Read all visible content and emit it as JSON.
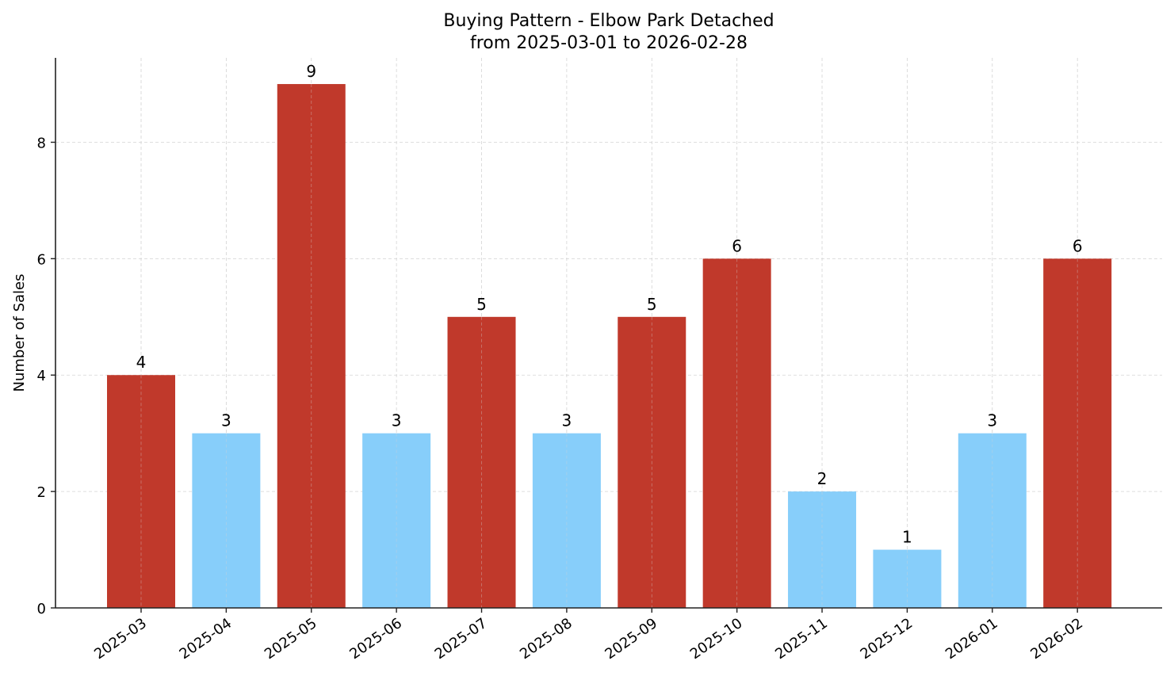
{
  "chart_data": {
    "type": "bar",
    "title": "Buying Pattern - Elbow Park Detached",
    "subtitle": "from 2025-03-01 to 2026-02-28",
    "xlabel": "",
    "ylabel": "Number of Sales",
    "categories": [
      "2025-03",
      "2025-04",
      "2025-05",
      "2025-06",
      "2025-07",
      "2025-08",
      "2025-09",
      "2025-10",
      "2025-11",
      "2025-12",
      "2026-01",
      "2026-02"
    ],
    "values": [
      4,
      3,
      9,
      3,
      5,
      3,
      5,
      6,
      2,
      1,
      3,
      6
    ],
    "bar_colors": [
      "#c0392b",
      "#87cefa",
      "#c0392b",
      "#87cefa",
      "#c0392b",
      "#87cefa",
      "#c0392b",
      "#c0392b",
      "#87cefa",
      "#87cefa",
      "#87cefa",
      "#c0392b"
    ],
    "ylim": [
      0,
      9.45
    ],
    "yticks": [
      0,
      2,
      4,
      6,
      8
    ],
    "grid": true,
    "legend": null,
    "colors": {
      "above_threshold": "#c0392b",
      "below_threshold": "#87cefa",
      "grid": "#d3d3d3",
      "axis": "#222222"
    }
  }
}
